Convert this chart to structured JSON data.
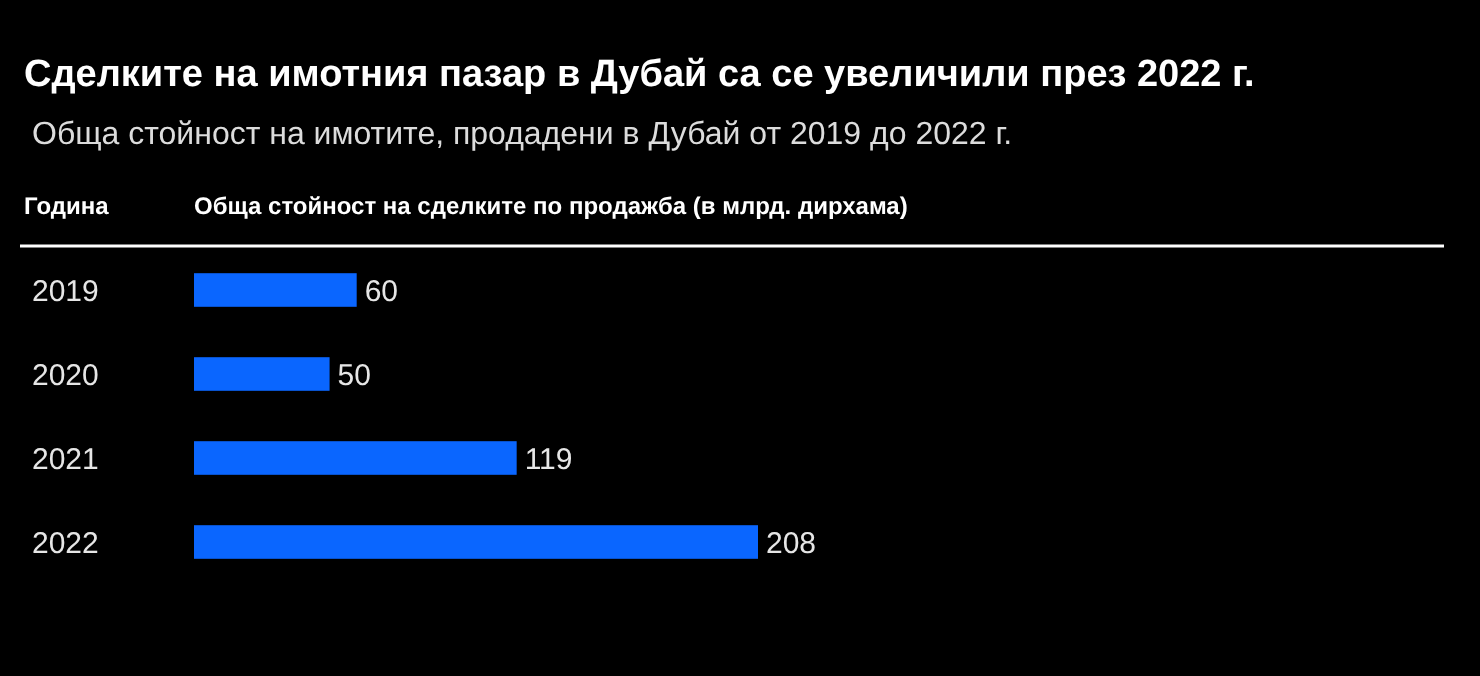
{
  "chart_data": {
    "type": "bar",
    "orientation": "horizontal",
    "title": "Сделките на имотния пазар в Дубай са се увеличили през 2022 г.",
    "subtitle": "Обща стойност на имотите, продадени в Дубай от 2019 до 2022 г.",
    "ylabel": "Година",
    "xlabel": "Обща стойност на сделките по продажба (в млрд. дирхама)",
    "categories": [
      "2019",
      "2020",
      "2021",
      "2022"
    ],
    "values": [
      60,
      50,
      119,
      208
    ],
    "color": "#0a66ff",
    "data_labels": true,
    "grid": false
  }
}
